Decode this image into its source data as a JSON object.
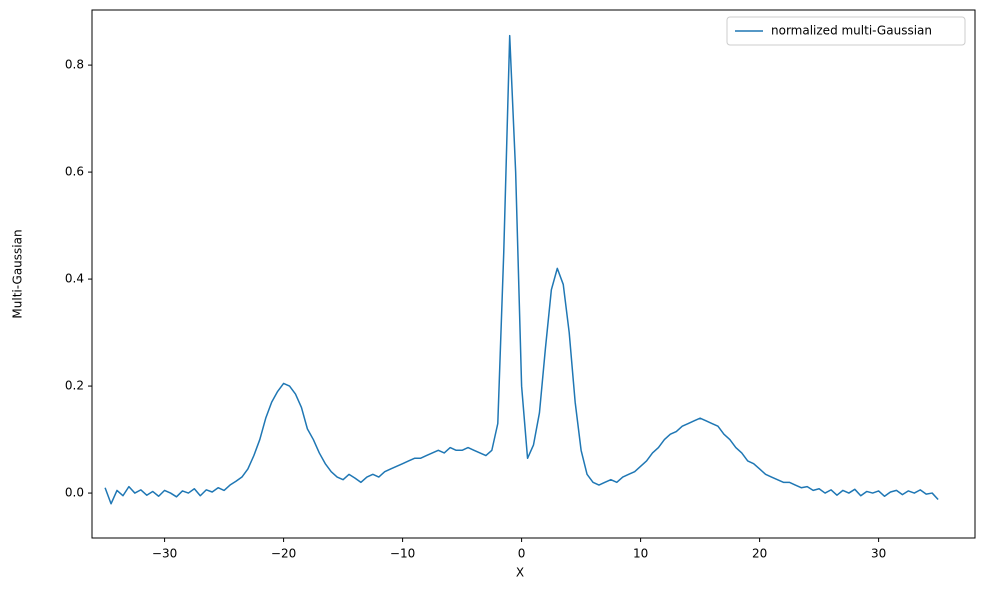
{
  "chart_data": {
    "type": "line",
    "xlabel": "X",
    "ylabel": "Multi-Gaussian",
    "x": [
      -35,
      -34.5,
      -34,
      -33.5,
      -33,
      -32.5,
      -32,
      -31.5,
      -31,
      -30.5,
      -30,
      -29.5,
      -29,
      -28.5,
      -28,
      -27.5,
      -27,
      -26.5,
      -26,
      -25.5,
      -25,
      -24.5,
      -24,
      -23.5,
      -23,
      -22.5,
      -22,
      -21.5,
      -21,
      -20.5,
      -20,
      -19.5,
      -19,
      -18.5,
      -18,
      -17.5,
      -17,
      -16.5,
      -16,
      -15.5,
      -15,
      -14.5,
      -14,
      -13.5,
      -13,
      -12.5,
      -12,
      -11.5,
      -11,
      -10.5,
      -10,
      -9.5,
      -9,
      -8.5,
      -8,
      -7.5,
      -7,
      -6.5,
      -6,
      -5.5,
      -5,
      -4.5,
      -4,
      -3.5,
      -3,
      -2.5,
      -2,
      -1.5,
      -1,
      -0.5,
      0,
      0.5,
      1,
      1.5,
      2,
      2.5,
      3,
      3.5,
      4,
      4.5,
      5,
      5.5,
      6,
      6.5,
      7,
      7.5,
      8,
      8.5,
      9,
      9.5,
      10,
      10.5,
      11,
      11.5,
      12,
      12.5,
      13,
      13.5,
      14,
      14.5,
      15,
      15.5,
      16,
      16.5,
      17,
      17.5,
      18,
      18.5,
      19,
      19.5,
      20,
      20.5,
      21,
      21.5,
      22,
      22.5,
      23,
      23.5,
      24,
      24.5,
      25,
      25.5,
      26,
      26.5,
      27,
      27.5,
      28,
      28.5,
      29,
      29.5,
      30,
      30.5,
      31,
      31.5,
      32,
      32.5,
      33,
      33.5,
      34,
      34.5,
      35
    ],
    "series": [
      {
        "name": "normalized multi-Gaussian",
        "color": "#1f77b4",
        "values": [
          0.01,
          -0.02,
          0.005,
          -0.005,
          0.012,
          0,
          0.006,
          -0.004,
          0.003,
          -0.006,
          0.005,
          0,
          -0.007,
          0.004,
          0,
          0.008,
          -0.005,
          0.006,
          0.002,
          0.01,
          0.005,
          0.015,
          0.022,
          0.03,
          0.045,
          0.07,
          0.1,
          0.14,
          0.17,
          0.19,
          0.205,
          0.2,
          0.185,
          0.16,
          0.12,
          0.1,
          0.075,
          0.055,
          0.04,
          0.03,
          0.025,
          0.035,
          0.028,
          0.02,
          0.03,
          0.035,
          0.03,
          0.04,
          0.045,
          0.05,
          0.055,
          0.06,
          0.065,
          0.065,
          0.07,
          0.075,
          0.08,
          0.075,
          0.085,
          0.08,
          0.08,
          0.085,
          0.08,
          0.075,
          0.07,
          0.08,
          0.13,
          0.45,
          0.855,
          0.6,
          0.2,
          0.065,
          0.09,
          0.15,
          0.27,
          0.38,
          0.42,
          0.39,
          0.3,
          0.17,
          0.08,
          0.035,
          0.02,
          0.015,
          0.02,
          0.025,
          0.02,
          0.03,
          0.035,
          0.04,
          0.05,
          0.06,
          0.075,
          0.085,
          0.1,
          0.11,
          0.115,
          0.125,
          0.13,
          0.135,
          0.14,
          0.135,
          0.13,
          0.125,
          0.11,
          0.1,
          0.085,
          0.075,
          0.06,
          0.055,
          0.045,
          0.035,
          0.03,
          0.025,
          0.02,
          0.02,
          0.015,
          0.01,
          0.012,
          0.005,
          0.008,
          0,
          0.006,
          -0.004,
          0.005,
          0,
          0.007,
          -0.005,
          0.003,
          0,
          0.004,
          -0.006,
          0.002,
          0.005,
          -0.003,
          0.004,
          0,
          0.006,
          -0.002,
          0,
          -0.012
        ]
      }
    ],
    "xlim": [
      -36.1,
      38.1
    ],
    "ylim": [
      -0.084,
      0.903
    ],
    "xticks": [
      {
        "value": -30,
        "label": "−30"
      },
      {
        "value": -20,
        "label": "−20"
      },
      {
        "value": -10,
        "label": "−10"
      },
      0,
      10,
      20,
      30
    ],
    "yticks": [
      {
        "value": 0,
        "label": "0.0"
      },
      0.2,
      0.4,
      0.6,
      0.8
    ],
    "legend": "upper right",
    "grid": false
  }
}
